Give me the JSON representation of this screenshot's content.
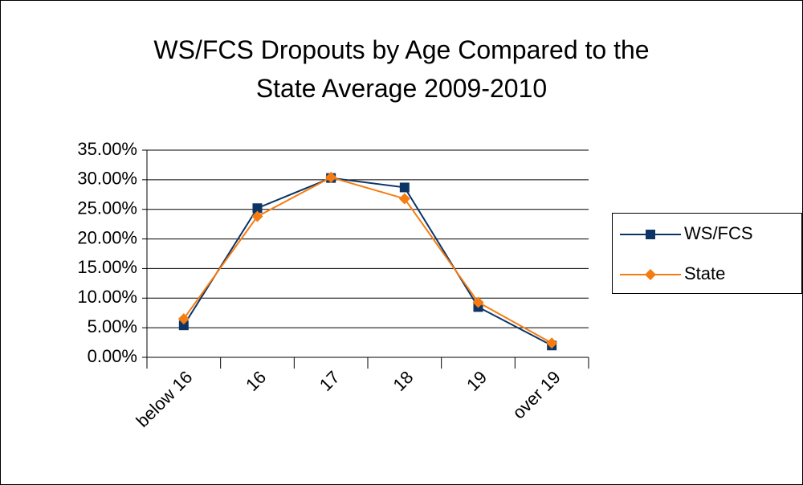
{
  "chart_data": {
    "type": "line",
    "title": "WS/FCS Dropouts by Age Compared to the State Average 2009-2010",
    "categories": [
      "below 16",
      "16",
      "17",
      "18",
      "19",
      "over 19"
    ],
    "series": [
      {
        "name": "WS/FCS",
        "color": "#0c3566",
        "marker": "square",
        "values": [
          5.4,
          25.2,
          30.3,
          28.7,
          8.5,
          2.0
        ]
      },
      {
        "name": "State",
        "color": "#f57c10",
        "marker": "diamond",
        "values": [
          6.5,
          23.8,
          30.4,
          26.8,
          9.3,
          2.4
        ]
      }
    ],
    "ylim": [
      0,
      35
    ],
    "yticks": [
      {
        "value": 0,
        "label": "0.00%"
      },
      {
        "value": 5,
        "label": "5.00%"
      },
      {
        "value": 10,
        "label": "10.00%"
      },
      {
        "value": 15,
        "label": "15.00%"
      },
      {
        "value": 20,
        "label": "20.00%"
      },
      {
        "value": 25,
        "label": "25.00%"
      },
      {
        "value": 30,
        "label": "30.00%"
      },
      {
        "value": 35,
        "label": "35.00%"
      }
    ],
    "grid": true,
    "legend": "right"
  }
}
